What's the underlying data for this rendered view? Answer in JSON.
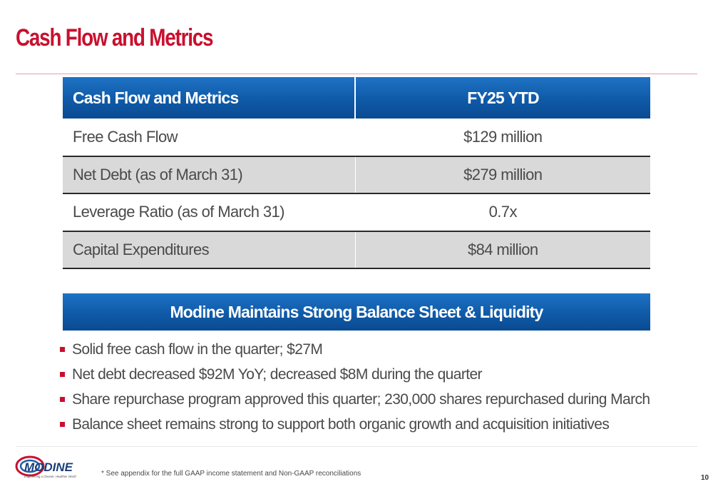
{
  "slide": {
    "title": "Cash Flow and Metrics",
    "page_number": "10"
  },
  "table": {
    "header_label": "Cash Flow and Metrics",
    "header_value": "FY25 YTD",
    "rows": [
      {
        "label": "Free Cash Flow",
        "value": "$129 million"
      },
      {
        "label": "Net Debt (as of March 31)",
        "value": "$279 million"
      },
      {
        "label": "Leverage Ratio (as of March 31)",
        "value": "0.7x"
      },
      {
        "label": "Capital Expenditures",
        "value": "$84 million"
      }
    ]
  },
  "banner": {
    "text": "Modine Maintains Strong Balance Sheet & Liquidity"
  },
  "bullets": [
    "Solid free cash flow in the quarter; $27M",
    "Net debt decreased $92M YoY; decreased $8M during the quarter",
    "Share repurchase program approved this quarter; 230,000 shares repurchased during March",
    "Balance sheet remains strong to support both organic growth and acquisition initiatives"
  ],
  "footer": {
    "logo_text": "MODINE",
    "logo_tagline": "Engineering a Cleaner, Healthier World",
    "footnote": "* See appendix for the full GAAP income statement and Non-GAAP reconciliations"
  },
  "colors": {
    "title_red": "#c8102e",
    "header_blue": "#0f5aa8",
    "row_gray": "#d9d9d9",
    "text_gray": "#4a4a4a"
  }
}
